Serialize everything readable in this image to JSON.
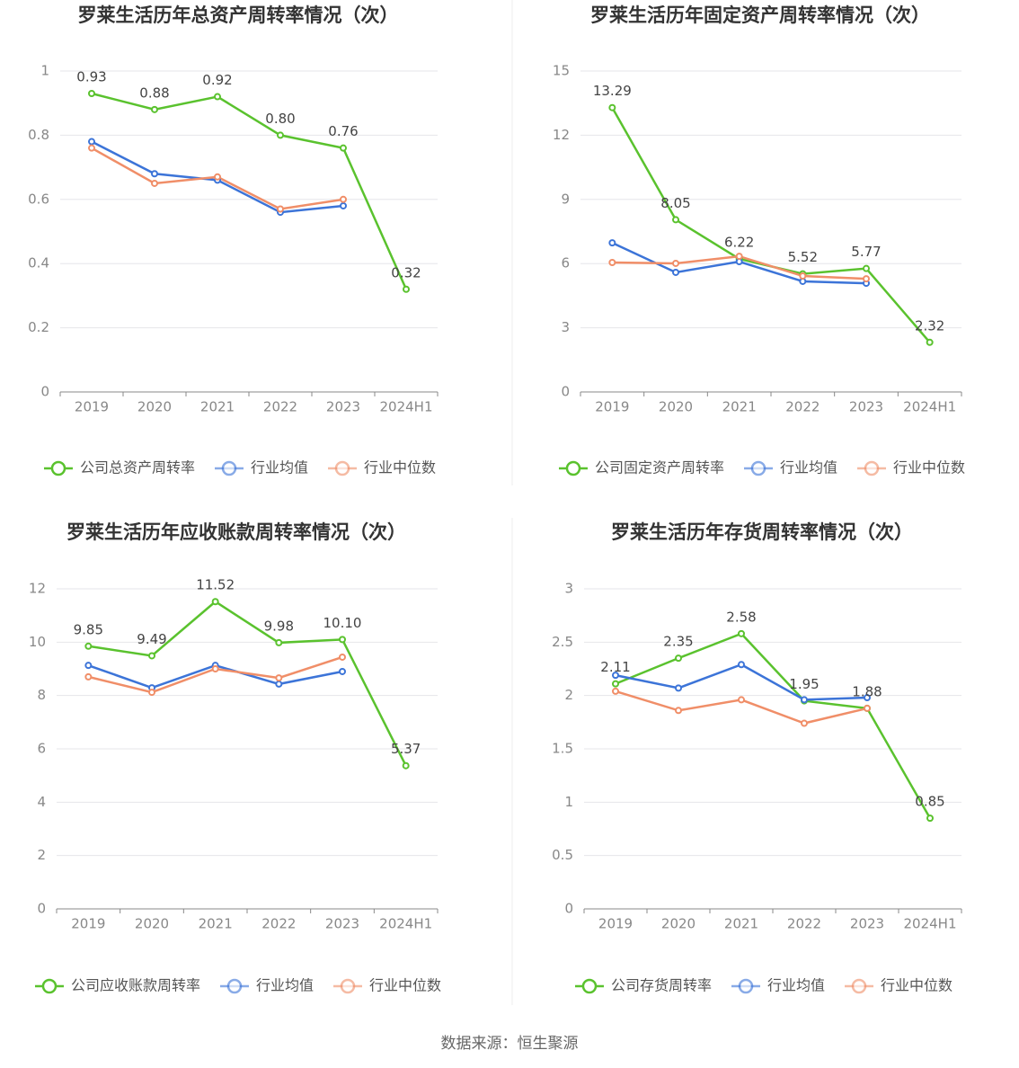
{
  "chart_data": [
    {
      "type": "line",
      "title": "罗莱生活历年总资产周转率情况（次）",
      "categories": [
        "2019",
        "2020",
        "2021",
        "2022",
        "2023",
        "2024H1"
      ],
      "series": [
        {
          "name": "公司总资产周转率",
          "color": "#5ac22e",
          "values": [
            0.93,
            0.88,
            0.92,
            0.8,
            0.76,
            0.32
          ],
          "value_labels": [
            "0.93",
            "0.88",
            "0.92",
            "0.80",
            "0.76",
            "0.32"
          ]
        },
        {
          "name": "行业均值",
          "color": "#3c74d8",
          "values": [
            0.78,
            0.68,
            0.66,
            0.56,
            0.58,
            null
          ]
        },
        {
          "name": "行业中位数",
          "color": "#f08e68",
          "values": [
            0.76,
            0.65,
            0.67,
            0.57,
            0.6,
            null
          ]
        }
      ],
      "ylim": [
        0,
        1
      ],
      "yticks": [
        0,
        0.2,
        0.4,
        0.6,
        0.8,
        1
      ],
      "grid": true,
      "legend": "bottom"
    },
    {
      "type": "line",
      "title": "罗莱生活历年固定资产周转率情况（次）",
      "categories": [
        "2019",
        "2020",
        "2021",
        "2022",
        "2023",
        "2024H1"
      ],
      "series": [
        {
          "name": "公司固定资产周转率",
          "color": "#5ac22e",
          "values": [
            13.29,
            8.05,
            6.22,
            5.52,
            5.77,
            2.32
          ]
        },
        {
          "name": "行业均值",
          "color": "#3c74d8",
          "values": [
            6.97,
            5.59,
            6.09,
            5.17,
            5.08,
            null
          ]
        },
        {
          "name": "行业中位数",
          "color": "#f08e68",
          "values": [
            6.05,
            6.01,
            6.34,
            5.42,
            5.29,
            null
          ]
        }
      ],
      "ylim": [
        0,
        15
      ],
      "yticks": [
        0,
        3,
        6,
        9,
        12,
        15
      ],
      "grid": true,
      "legend": "bottom"
    },
    {
      "type": "line",
      "title": "罗莱生活历年应收账款周转率情况（次）",
      "categories": [
        "2019",
        "2020",
        "2021",
        "2022",
        "2023",
        "2024H1"
      ],
      "series": [
        {
          "name": "公司应收账款周转率",
          "color": "#5ac22e",
          "values": [
            9.85,
            9.49,
            11.52,
            9.98,
            10.1,
            5.37
          ],
          "value_labels": [
            "9.85",
            "9.49",
            "11.52",
            "9.98",
            "10.10",
            "5.37"
          ]
        },
        {
          "name": "行业均值",
          "color": "#3c74d8",
          "values": [
            9.13,
            8.29,
            9.13,
            8.43,
            8.9,
            null
          ]
        },
        {
          "name": "行业中位数",
          "color": "#f08e68",
          "values": [
            8.7,
            8.12,
            9.0,
            8.66,
            9.44,
            null
          ]
        }
      ],
      "ylim": [
        0,
        12
      ],
      "yticks": [
        0,
        2,
        4,
        6,
        8,
        10,
        12
      ],
      "grid": true,
      "legend": "bottom"
    },
    {
      "type": "line",
      "title": "罗莱生活历年存货周转率情况（次）",
      "categories": [
        "2019",
        "2020",
        "2021",
        "2022",
        "2023",
        "2024H1"
      ],
      "series": [
        {
          "name": "公司存货周转率",
          "color": "#5ac22e",
          "values": [
            2.11,
            2.35,
            2.58,
            1.95,
            1.88,
            0.85
          ]
        },
        {
          "name": "行业均值",
          "color": "#3c74d8",
          "values": [
            2.19,
            2.07,
            2.29,
            1.96,
            1.98,
            null
          ]
        },
        {
          "name": "行业中位数",
          "color": "#f08e68",
          "values": [
            2.04,
            1.86,
            1.96,
            1.74,
            1.88,
            null
          ]
        }
      ],
      "ylim": [
        0,
        3
      ],
      "yticks": [
        0,
        0.5,
        1,
        1.5,
        2,
        2.5,
        3
      ],
      "grid": true,
      "legend": "bottom"
    }
  ],
  "source": "数据来源：恒生聚源"
}
